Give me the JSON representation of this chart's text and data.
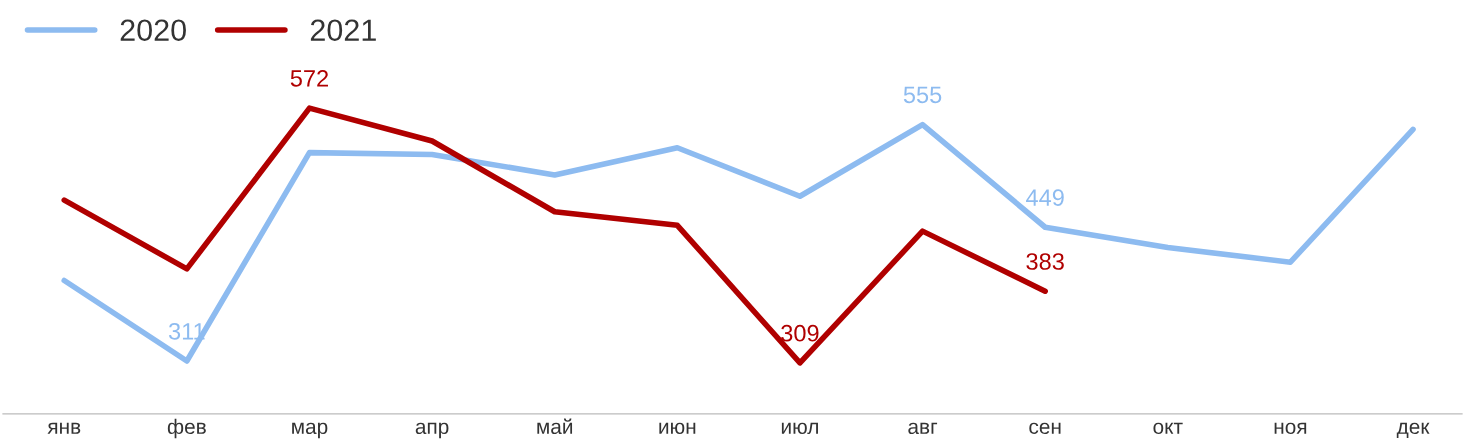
{
  "chart_data": {
    "type": "line",
    "categories": [
      "янв",
      "фев",
      "мар",
      "апр",
      "май",
      "июн",
      "июл",
      "авг",
      "сен",
      "окт",
      "ноя",
      "дек"
    ],
    "series": [
      {
        "name": "2020",
        "color": "#8dbbf0",
        "values": [
          394,
          311,
          526,
          524,
          503,
          531,
          481,
          555,
          449,
          428,
          413,
          550
        ],
        "value_labels": [
          null,
          "311",
          null,
          null,
          null,
          null,
          null,
          "555",
          "449",
          null,
          null,
          null
        ]
      },
      {
        "name": "2021",
        "color": "#b00000",
        "values": [
          477,
          406,
          572,
          538,
          465,
          451,
          309,
          445,
          383,
          null,
          null,
          null
        ],
        "value_labels": [
          null,
          null,
          "572",
          null,
          null,
          null,
          "309",
          null,
          "383",
          null,
          null,
          null
        ]
      }
    ],
    "tick_labels": "x",
    "grid": false,
    "legend": "top left",
    "marker": "none",
    "line_style": "solid"
  }
}
